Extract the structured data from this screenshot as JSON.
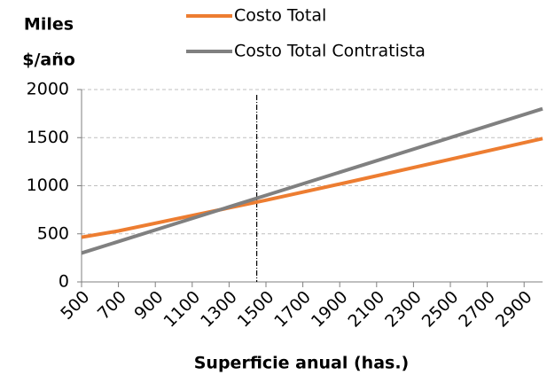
{
  "chart_data": {
    "type": "line",
    "ylabel": [
      "Miles",
      "$/año"
    ],
    "xlabel": "Superficie anual (has.)",
    "x": [
      500,
      700,
      1000,
      1500,
      2000,
      2500,
      3000
    ],
    "series": [
      {
        "name": "Costo Total",
        "color": "#ed7d31",
        "values": [
          465,
          530,
          650,
          850,
          1060,
          1275,
          1490
        ]
      },
      {
        "name": "Costo Total Contratista",
        "color": "#808080",
        "values": [
          300,
          420,
          600,
          900,
          1200,
          1500,
          1800
        ]
      }
    ],
    "xlim": [
      500,
      3000
    ],
    "xticks": [
      500,
      700,
      900,
      1100,
      1300,
      1500,
      1700,
      1900,
      2100,
      2300,
      2500,
      2700,
      2900
    ],
    "ylim": [
      0,
      2000
    ],
    "yticks": [
      0,
      500,
      1000,
      1500,
      2000
    ],
    "grid": true,
    "vline_x": 1450
  }
}
